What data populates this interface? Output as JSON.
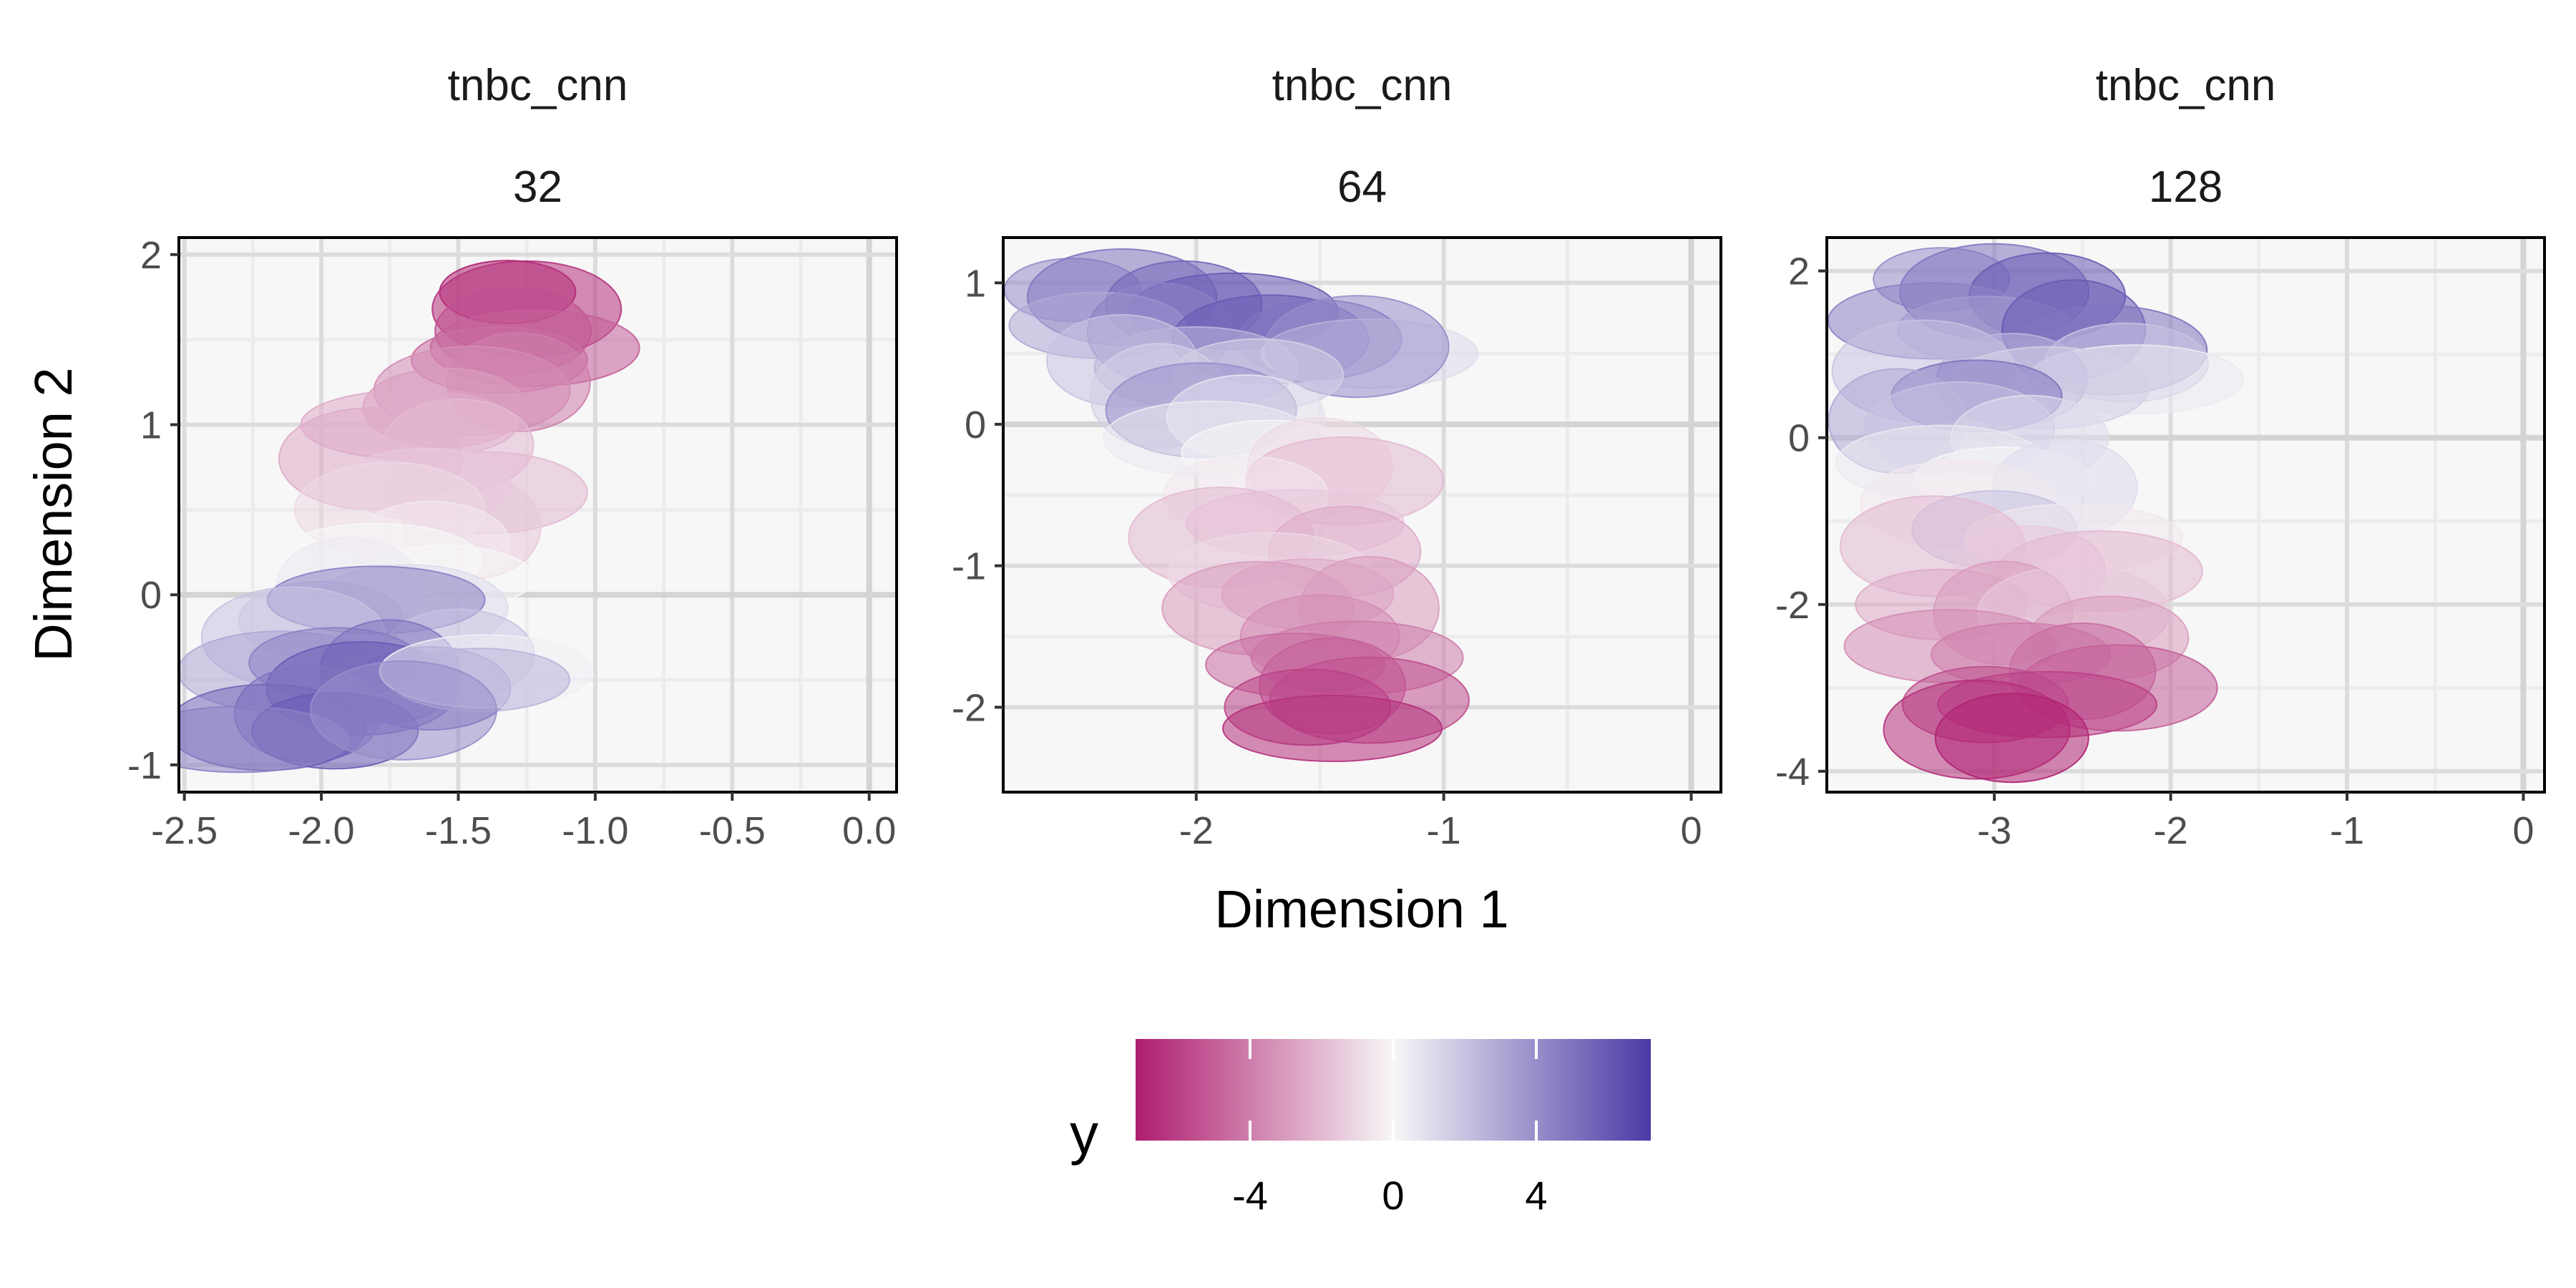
{
  "figure": {
    "xlabel": "Dimension 1",
    "ylabel": "Dimension 2"
  },
  "chart_data": [
    {
      "type": "scatter",
      "strip": [
        "tnbc_cnn",
        "32"
      ],
      "xlim": [
        -2.52,
        0.1
      ],
      "ylim": [
        -1.16,
        2.1
      ],
      "x_ticks": [
        -2.5,
        -2.0,
        -1.5,
        -1.0,
        -0.5,
        0.0
      ],
      "x_tick_labels": [
        "-2.5",
        "-2.0",
        "-1.5",
        "-1.0",
        "-0.5",
        "0.0"
      ],
      "y_ticks": [
        -1,
        0,
        1,
        2
      ],
      "y_tick_labels": [
        "-1",
        "0",
        "1",
        "2"
      ],
      "grid": true,
      "color_by": "y",
      "points": [
        {
          "x": -1.32,
          "y": 1.78,
          "value": -7
        },
        {
          "x": -1.25,
          "y": 1.68,
          "value": -6.5
        },
        {
          "x": -1.3,
          "y": 1.55,
          "value": -5.5
        },
        {
          "x": -1.22,
          "y": 1.45,
          "value": -5
        },
        {
          "x": -1.35,
          "y": 1.38,
          "value": -4.5
        },
        {
          "x": -1.28,
          "y": 1.25,
          "value": -4
        },
        {
          "x": -1.45,
          "y": 1.2,
          "value": -3.5
        },
        {
          "x": -1.55,
          "y": 1.1,
          "value": -3
        },
        {
          "x": -1.68,
          "y": 1.0,
          "value": -2.5
        },
        {
          "x": -1.82,
          "y": 0.8,
          "value": -2.5
        },
        {
          "x": -1.5,
          "y": 0.88,
          "value": -2
        },
        {
          "x": -1.4,
          "y": 0.6,
          "value": -2
        },
        {
          "x": -1.62,
          "y": 0.65,
          "value": -1.5
        },
        {
          "x": -1.45,
          "y": 0.4,
          "value": -1.5
        },
        {
          "x": -1.75,
          "y": 0.5,
          "value": -1
        },
        {
          "x": -1.6,
          "y": 0.3,
          "value": -0.5
        },
        {
          "x": -1.8,
          "y": 0.2,
          "value": 0
        },
        {
          "x": -1.55,
          "y": 0.1,
          "value": 0
        },
        {
          "x": -1.9,
          "y": 0.05,
          "value": 0.5
        },
        {
          "x": -1.68,
          "y": -0.08,
          "value": 1
        },
        {
          "x": -2.0,
          "y": -0.15,
          "value": 1.5
        },
        {
          "x": -1.8,
          "y": -0.03,
          "value": 4.5
        },
        {
          "x": -2.1,
          "y": -0.25,
          "value": 2
        },
        {
          "x": -1.5,
          "y": -0.35,
          "value": 2
        },
        {
          "x": -2.15,
          "y": -0.45,
          "value": 3
        },
        {
          "x": -1.95,
          "y": -0.4,
          "value": 4.5
        },
        {
          "x": -1.75,
          "y": -0.45,
          "value": 5
        },
        {
          "x": -1.85,
          "y": -0.55,
          "value": 6
        },
        {
          "x": -1.6,
          "y": -0.55,
          "value": 5.5
        },
        {
          "x": -1.4,
          "y": -0.45,
          "value": 0.3
        },
        {
          "x": -1.42,
          "y": -0.5,
          "value": 2.5
        },
        {
          "x": -2.05,
          "y": -0.7,
          "value": 5
        },
        {
          "x": -2.2,
          "y": -0.78,
          "value": 5.5
        },
        {
          "x": -1.95,
          "y": -0.8,
          "value": 6
        },
        {
          "x": -2.3,
          "y": -0.85,
          "value": 4.5
        },
        {
          "x": -1.7,
          "y": -0.68,
          "value": 4
        }
      ]
    },
    {
      "type": "scatter",
      "strip": [
        "tnbc_cnn",
        "64"
      ],
      "xlim": [
        -2.78,
        0.12
      ],
      "ylim": [
        -2.6,
        1.32
      ],
      "x_ticks": [
        -2,
        -1,
        0
      ],
      "x_tick_labels": [
        "-2",
        "-1",
        "0"
      ],
      "y_ticks": [
        -2,
        -1,
        0,
        1
      ],
      "y_tick_labels": [
        "-2",
        "-1",
        "0",
        "1"
      ],
      "grid": true,
      "color_by": "y",
      "points": [
        {
          "x": -2.5,
          "y": 0.95,
          "value": 4
        },
        {
          "x": -2.3,
          "y": 0.9,
          "value": 5
        },
        {
          "x": -2.05,
          "y": 0.85,
          "value": 5.5
        },
        {
          "x": -1.85,
          "y": 0.8,
          "value": 6
        },
        {
          "x": -2.4,
          "y": 0.7,
          "value": 3
        },
        {
          "x": -2.15,
          "y": 0.65,
          "value": 4.5
        },
        {
          "x": -1.7,
          "y": 0.6,
          "value": 6
        },
        {
          "x": -1.5,
          "y": 0.6,
          "value": 5
        },
        {
          "x": -1.3,
          "y": 0.5,
          "value": 1
        },
        {
          "x": -1.35,
          "y": 0.55,
          "value": 4
        },
        {
          "x": -2.3,
          "y": 0.45,
          "value": 2
        },
        {
          "x": -2.0,
          "y": 0.4,
          "value": 2.5
        },
        {
          "x": -1.75,
          "y": 0.35,
          "value": 1.5
        },
        {
          "x": -2.15,
          "y": 0.2,
          "value": 1.5
        },
        {
          "x": -1.98,
          "y": 0.1,
          "value": 4
        },
        {
          "x": -1.8,
          "y": 0.05,
          "value": 0.8
        },
        {
          "x": -1.95,
          "y": -0.1,
          "value": 0.5
        },
        {
          "x": -1.7,
          "y": -0.2,
          "value": 0
        },
        {
          "x": -1.5,
          "y": -0.3,
          "value": -1
        },
        {
          "x": -1.4,
          "y": -0.4,
          "value": -2
        },
        {
          "x": -1.8,
          "y": -0.5,
          "value": -0.5
        },
        {
          "x": -1.6,
          "y": -0.7,
          "value": -1.5
        },
        {
          "x": -1.9,
          "y": -0.8,
          "value": -2
        },
        {
          "x": -1.4,
          "y": -0.9,
          "value": -2.5
        },
        {
          "x": -1.7,
          "y": -1.05,
          "value": -1
        },
        {
          "x": -1.55,
          "y": -1.2,
          "value": -2.5
        },
        {
          "x": -1.3,
          "y": -1.3,
          "value": -3
        },
        {
          "x": -1.75,
          "y": -1.3,
          "value": -3
        },
        {
          "x": -1.5,
          "y": -1.5,
          "value": -3.5
        },
        {
          "x": -1.35,
          "y": -1.65,
          "value": -4
        },
        {
          "x": -1.6,
          "y": -1.7,
          "value": -4.5
        },
        {
          "x": -1.45,
          "y": -1.85,
          "value": -5
        },
        {
          "x": -1.3,
          "y": -1.95,
          "value": -5.5
        },
        {
          "x": -1.55,
          "y": -2.0,
          "value": -6
        },
        {
          "x": -1.45,
          "y": -2.15,
          "value": -6.5
        }
      ]
    },
    {
      "type": "scatter",
      "strip": [
        "tnbc_cnn",
        "128"
      ],
      "xlim": [
        -3.95,
        0.12
      ],
      "ylim": [
        -4.25,
        2.4
      ],
      "x_ticks": [
        -3,
        -2,
        -1,
        0
      ],
      "x_tick_labels": [
        "-3",
        "-2",
        "-1",
        "0"
      ],
      "y_ticks": [
        -4,
        -2,
        0,
        2
      ],
      "y_tick_labels": [
        "-4",
        "-2",
        "0",
        "2"
      ],
      "grid": true,
      "color_by": "y",
      "points": [
        {
          "x": -3.3,
          "y": 1.9,
          "value": 4
        },
        {
          "x": -3.0,
          "y": 1.75,
          "value": 5
        },
        {
          "x": -2.7,
          "y": 1.7,
          "value": 6
        },
        {
          "x": -3.35,
          "y": 1.4,
          "value": 4.5
        },
        {
          "x": -3.05,
          "y": 1.3,
          "value": 3.5
        },
        {
          "x": -2.55,
          "y": 1.3,
          "value": 6
        },
        {
          "x": -2.35,
          "y": 1.05,
          "value": 5
        },
        {
          "x": -2.25,
          "y": 0.9,
          "value": 2
        },
        {
          "x": -2.2,
          "y": 0.7,
          "value": 0.5
        },
        {
          "x": -3.4,
          "y": 0.8,
          "value": 2
        },
        {
          "x": -2.9,
          "y": 0.7,
          "value": 2.5
        },
        {
          "x": -2.7,
          "y": 0.6,
          "value": 1.5
        },
        {
          "x": -3.1,
          "y": 0.5,
          "value": 5
        },
        {
          "x": -3.55,
          "y": 0.2,
          "value": 3
        },
        {
          "x": -3.2,
          "y": 0.1,
          "value": 2
        },
        {
          "x": -2.8,
          "y": 0.0,
          "value": 1
        },
        {
          "x": -3.3,
          "y": -0.3,
          "value": 0.5
        },
        {
          "x": -2.95,
          "y": -0.5,
          "value": 0
        },
        {
          "x": -2.6,
          "y": -0.6,
          "value": 1
        },
        {
          "x": -3.2,
          "y": -0.8,
          "value": -0.5
        },
        {
          "x": -3.0,
          "y": -1.1,
          "value": 2
        },
        {
          "x": -2.55,
          "y": -1.2,
          "value": -0.5
        },
        {
          "x": -3.35,
          "y": -1.3,
          "value": -2
        },
        {
          "x": -2.8,
          "y": -1.6,
          "value": -1.5
        },
        {
          "x": -2.4,
          "y": -1.6,
          "value": -2
        },
        {
          "x": -3.3,
          "y": -2.0,
          "value": -2.5
        },
        {
          "x": -2.95,
          "y": -2.1,
          "value": -3
        },
        {
          "x": -2.55,
          "y": -2.1,
          "value": -1.5
        },
        {
          "x": -2.35,
          "y": -2.4,
          "value": -3
        },
        {
          "x": -3.25,
          "y": -2.5,
          "value": -3.5
        },
        {
          "x": -2.85,
          "y": -2.6,
          "value": -4
        },
        {
          "x": -2.5,
          "y": -2.8,
          "value": -4.5
        },
        {
          "x": -2.3,
          "y": -3.0,
          "value": -5
        },
        {
          "x": -3.05,
          "y": -3.2,
          "value": -5.5
        },
        {
          "x": -2.7,
          "y": -3.2,
          "value": -6
        },
        {
          "x": -3.1,
          "y": -3.5,
          "value": -6.5
        },
        {
          "x": -2.9,
          "y": -3.6,
          "value": -7
        }
      ]
    }
  ],
  "legend": {
    "title": "y",
    "min": -7.2,
    "max": 7.2,
    "ticks": [
      -4,
      0,
      4
    ],
    "tick_labels": [
      "-4",
      "0",
      "4"
    ],
    "colors": {
      "low": "#ae1c6f",
      "mid": "#f7f7f7",
      "high": "#4b3aa6"
    },
    "placement": "bottom-center"
  },
  "style": {
    "panel_background": "#f7f7f7",
    "grid_major": "#dcdcdc",
    "grid_minor": "#ececec",
    "panel_border": "#000000"
  }
}
